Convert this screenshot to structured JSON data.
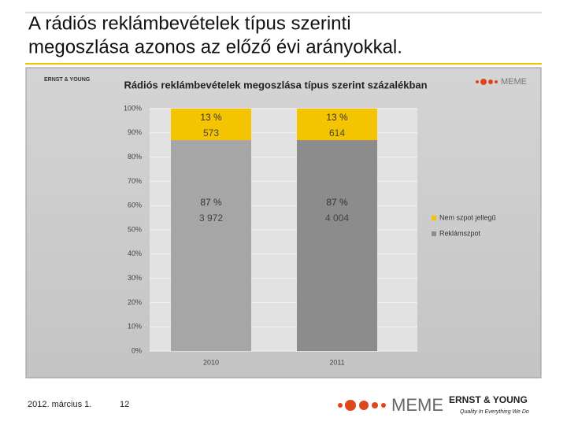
{
  "slide": {
    "title_lines": [
      "A rádiós reklámbevételek típus szerinti",
      "megoszlása azonos az előző évi arányokkal."
    ],
    "date": "2012. március 1.",
    "page": "12",
    "logo_meme": "MEME",
    "logo_ey": "ERNST & YOUNG",
    "ey_tagline": "Quality In Everything We Do"
  },
  "chart_data": {
    "type": "stacked_bar",
    "title": "Rádiós reklámbevételek megoszlása típus szerint százalékban",
    "logo_ey": "ERNST & YOUNG",
    "logo_meme": "MEME",
    "categories": [
      "2010",
      "2011"
    ],
    "series": [
      {
        "name": "Reklámszpot",
        "color": "#8c8c8c",
        "point_colors": [
          "#a6a6a6",
          "#8c8c8c"
        ],
        "values": [
          87,
          87
        ],
        "value_labels": [
          "87 %",
          "87 %"
        ],
        "amount_labels": [
          "3 972",
          "4 004"
        ]
      },
      {
        "name": "Nem szpot jellegű",
        "color": "#f5c400",
        "point_colors": [
          "#f5c400",
          "#f5c400"
        ],
        "values": [
          13,
          13
        ],
        "value_labels": [
          "13 %",
          "13 %"
        ],
        "amount_labels": [
          "573",
          "614"
        ]
      }
    ],
    "ylim": [
      0,
      100
    ],
    "yticks": [
      {
        "value": 0,
        "label": "0%"
      },
      {
        "value": 10,
        "label": "10%"
      },
      {
        "value": 20,
        "label": "20%"
      },
      {
        "value": 30,
        "label": "30%"
      },
      {
        "value": 40,
        "label": "40%"
      },
      {
        "value": 50,
        "label": "50%"
      },
      {
        "value": 60,
        "label": "60%"
      },
      {
        "value": 70,
        "label": "70%"
      },
      {
        "value": 80,
        "label": "80%"
      },
      {
        "value": 90,
        "label": "90%"
      },
      {
        "value": 100,
        "label": "100%"
      }
    ],
    "grid": true,
    "legend": "right"
  }
}
